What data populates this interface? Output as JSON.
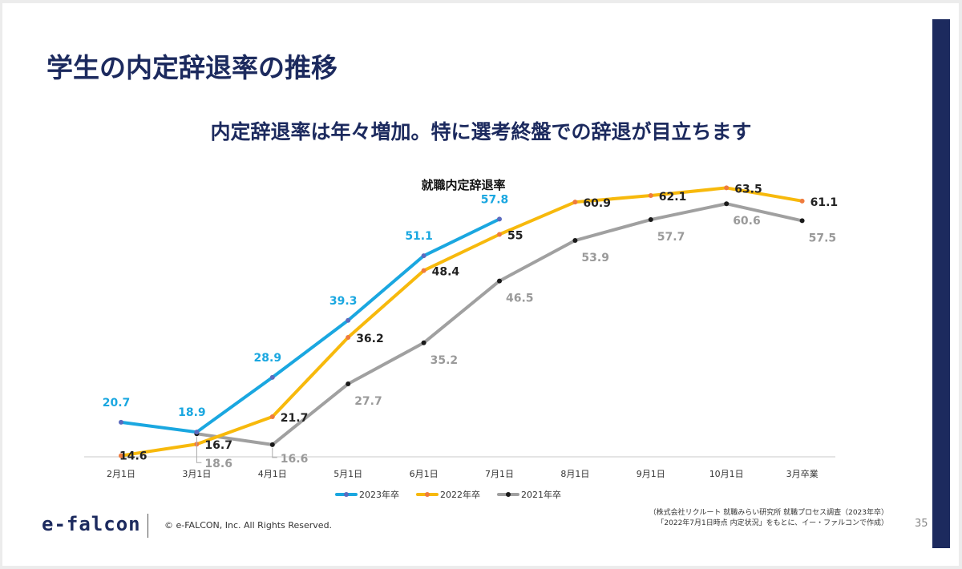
{
  "slide": {
    "title": "学生の内定辞退率の推移",
    "subtitle": "内定辞退率は年々増加。特に選考終盤での辞退が目立ちます"
  },
  "chart_data": {
    "type": "line",
    "title": "就職内定辞退率",
    "categories": [
      "2月1日",
      "3月1日",
      "4月1日",
      "5月1日",
      "6月1日",
      "7月1日",
      "8月1日",
      "9月1日",
      "10月1日",
      "3月卒業"
    ],
    "ylim": [
      10,
      70
    ],
    "grid": false,
    "legend": "bottom",
    "series": [
      {
        "name": "2023年卒",
        "color": "#1aa7e0",
        "marker": "#5b6bbf",
        "label_color": "#1aa7e0",
        "values": [
          20.7,
          18.9,
          28.9,
          39.3,
          51.1,
          57.8,
          null,
          null,
          null,
          null
        ]
      },
      {
        "name": "2022年卒",
        "color": "#f7b90c",
        "marker": "#ef7b3e",
        "label_color": "#222222",
        "values": [
          14.6,
          16.7,
          21.7,
          36.2,
          48.4,
          55,
          60.9,
          62.1,
          63.5,
          61.1
        ]
      },
      {
        "name": "2021年卒",
        "color": "#a0a0a0",
        "marker": "#1a1a1a",
        "label_color": "#9a9a9a",
        "values": [
          null,
          18.6,
          16.6,
          27.7,
          35.2,
          46.5,
          53.9,
          57.7,
          60.6,
          57.5
        ]
      }
    ]
  },
  "footer": {
    "logo": "e-falcon",
    "copyright": "© e-FALCON, Inc. All Rights Reserved.",
    "source_line1": "（株式会社リクルート 就職みらい研究所 就職プロセス調査（2023年卒）",
    "source_line2": "「2022年7月1日時点 内定状況」をもとに、イー・ファルコンで作成）",
    "page_number": "35"
  }
}
